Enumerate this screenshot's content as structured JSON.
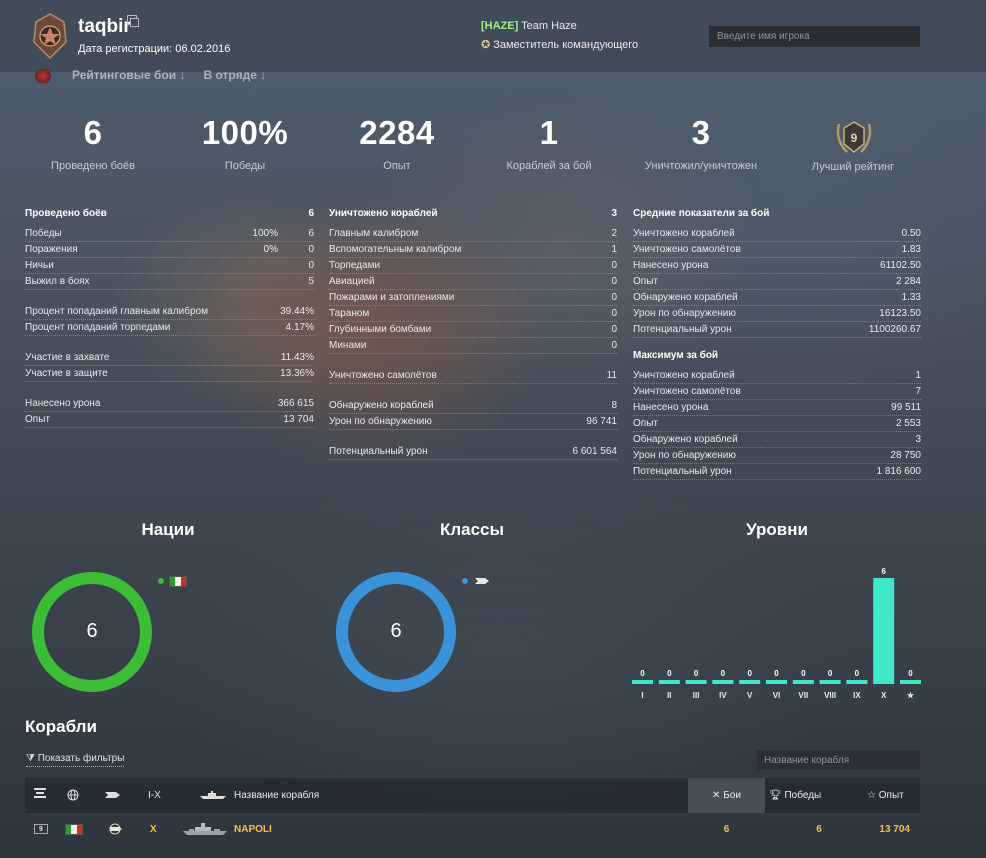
{
  "header": {
    "username": "taqbir",
    "reg_date": "Дата регистрации: 06.02.2016",
    "clan_tag": "[HAZE]",
    "clan_name": " Team Haze",
    "clan_role": "Заместитель командующего",
    "search_placeholder": "Введите имя игрока"
  },
  "mode_tabs": [
    {
      "label": "Рейтинговые бои ↓"
    },
    {
      "label": "В отряде ↓"
    }
  ],
  "summary": [
    {
      "value": "6",
      "label": "Проведено боёв"
    },
    {
      "value": "100%",
      "label": "Победы"
    },
    {
      "value": "2284",
      "label": "Опыт"
    },
    {
      "value": "1",
      "label": "Кораблей за бой"
    },
    {
      "value": "3",
      "label": "Уничтожил/уничтожен"
    }
  ],
  "best_rank": {
    "label": "Лучший рейтинг",
    "value": "9"
  },
  "stats_left": {
    "title": "Проведено боёв",
    "title_value": "6",
    "wins": {
      "label": "Победы",
      "pct": "100%",
      "cnt": "6"
    },
    "losses": {
      "label": "Поражения",
      "pct": "0%",
      "cnt": "0"
    },
    "draws": {
      "label": "Ничьи",
      "value": "0"
    },
    "survived": {
      "label": "Выжил в боях",
      "value": "5"
    },
    "main_hit": {
      "label": "Процент попаданий главным калибром",
      "value": "39.44%"
    },
    "torp_hit": {
      "label": "Процент попаданий торпедами",
      "value": "4.17%"
    },
    "capture": {
      "label": "Участие в захвате",
      "value": "11.43%"
    },
    "defense": {
      "label": "Участие в защите",
      "value": "13.36%"
    },
    "damage": {
      "label": "Нанесено урона",
      "value": "366 615"
    },
    "xp": {
      "label": "Опыт",
      "value": "13 704"
    }
  },
  "stats_mid": {
    "title": "Уничтожено кораблей",
    "title_value": "3",
    "rows": [
      {
        "label": "Главным калибром",
        "value": "2"
      },
      {
        "label": "Вспомогательным калибром",
        "value": "1"
      },
      {
        "label": "Торпедами",
        "value": "0"
      },
      {
        "label": "Авиацией",
        "value": "0"
      },
      {
        "label": "Пожарами и затоплениями",
        "value": "0"
      },
      {
        "label": "Тараном",
        "value": "0"
      },
      {
        "label": "Глубинными бомбами",
        "value": "0"
      },
      {
        "label": "Минами",
        "value": "0"
      }
    ],
    "planes": {
      "label": "Уничтожено самолётов",
      "value": "11"
    },
    "spotted": {
      "label": "Обнаружено кораблей",
      "value": "8"
    },
    "spot_dmg": {
      "label": "Урон по обнаружению",
      "value": "96 741"
    },
    "potential": {
      "label": "Потенциальный урон",
      "value": "6 601 564"
    }
  },
  "stats_avg": {
    "title": "Средние показатели за бой",
    "rows": [
      {
        "label": "Уничтожено кораблей",
        "value": "0.50"
      },
      {
        "label": "Уничтожено самолётов",
        "value": "1.83"
      },
      {
        "label": "Нанесено урона",
        "value": "61102.50"
      },
      {
        "label": "Опыт",
        "value": "2 284"
      },
      {
        "label": "Обнаружено кораблей",
        "value": "1.33"
      },
      {
        "label": "Урон по обнаружению",
        "value": "16123.50"
      },
      {
        "label": "Потенциальный урон",
        "value": "1100260.67"
      }
    ]
  },
  "stats_max": {
    "title": "Максимум за бой",
    "rows": [
      {
        "label": "Уничтожено кораблей",
        "value": "1"
      },
      {
        "label": "Уничтожено самолётов",
        "value": "7"
      },
      {
        "label": "Нанесено урона",
        "value": "99 511"
      },
      {
        "label": "Опыт",
        "value": "2 553"
      },
      {
        "label": "Обнаружено кораблей",
        "value": "3"
      },
      {
        "label": "Урон по обнаружению",
        "value": "28 750"
      },
      {
        "label": "Потенциальный урон",
        "value": "1 816 600"
      }
    ]
  },
  "charts": {
    "nations": {
      "title": "Нации",
      "center": "6",
      "color": "#3cbd35"
    },
    "classes": {
      "title": "Классы",
      "center": "6",
      "color": "#3a92d8"
    },
    "levels_title": "Уровни"
  },
  "chart_data": {
    "type": "bar",
    "categories": [
      "I",
      "II",
      "III",
      "IV",
      "V",
      "VI",
      "VII",
      "VIII",
      "IX",
      "X",
      "★"
    ],
    "values": [
      0,
      0,
      0,
      0,
      0,
      0,
      0,
      0,
      0,
      6,
      0
    ],
    "title": "Уровни",
    "ylim": [
      0,
      6
    ],
    "bar_color": "#3ee8c8"
  },
  "ships": {
    "title": "Корабли",
    "filters_label": "Показать фильтры",
    "search_placeholder": "Название корабля",
    "columns": {
      "tier": "I-X",
      "name": "Название корабля",
      "battles": "Бои",
      "wins": "Победы",
      "xp": "Опыт"
    },
    "rows": [
      {
        "rank": "9",
        "tier": "X",
        "name": "NAPOLI",
        "battles": "6",
        "wins": "6",
        "xp": "13 704"
      }
    ]
  }
}
